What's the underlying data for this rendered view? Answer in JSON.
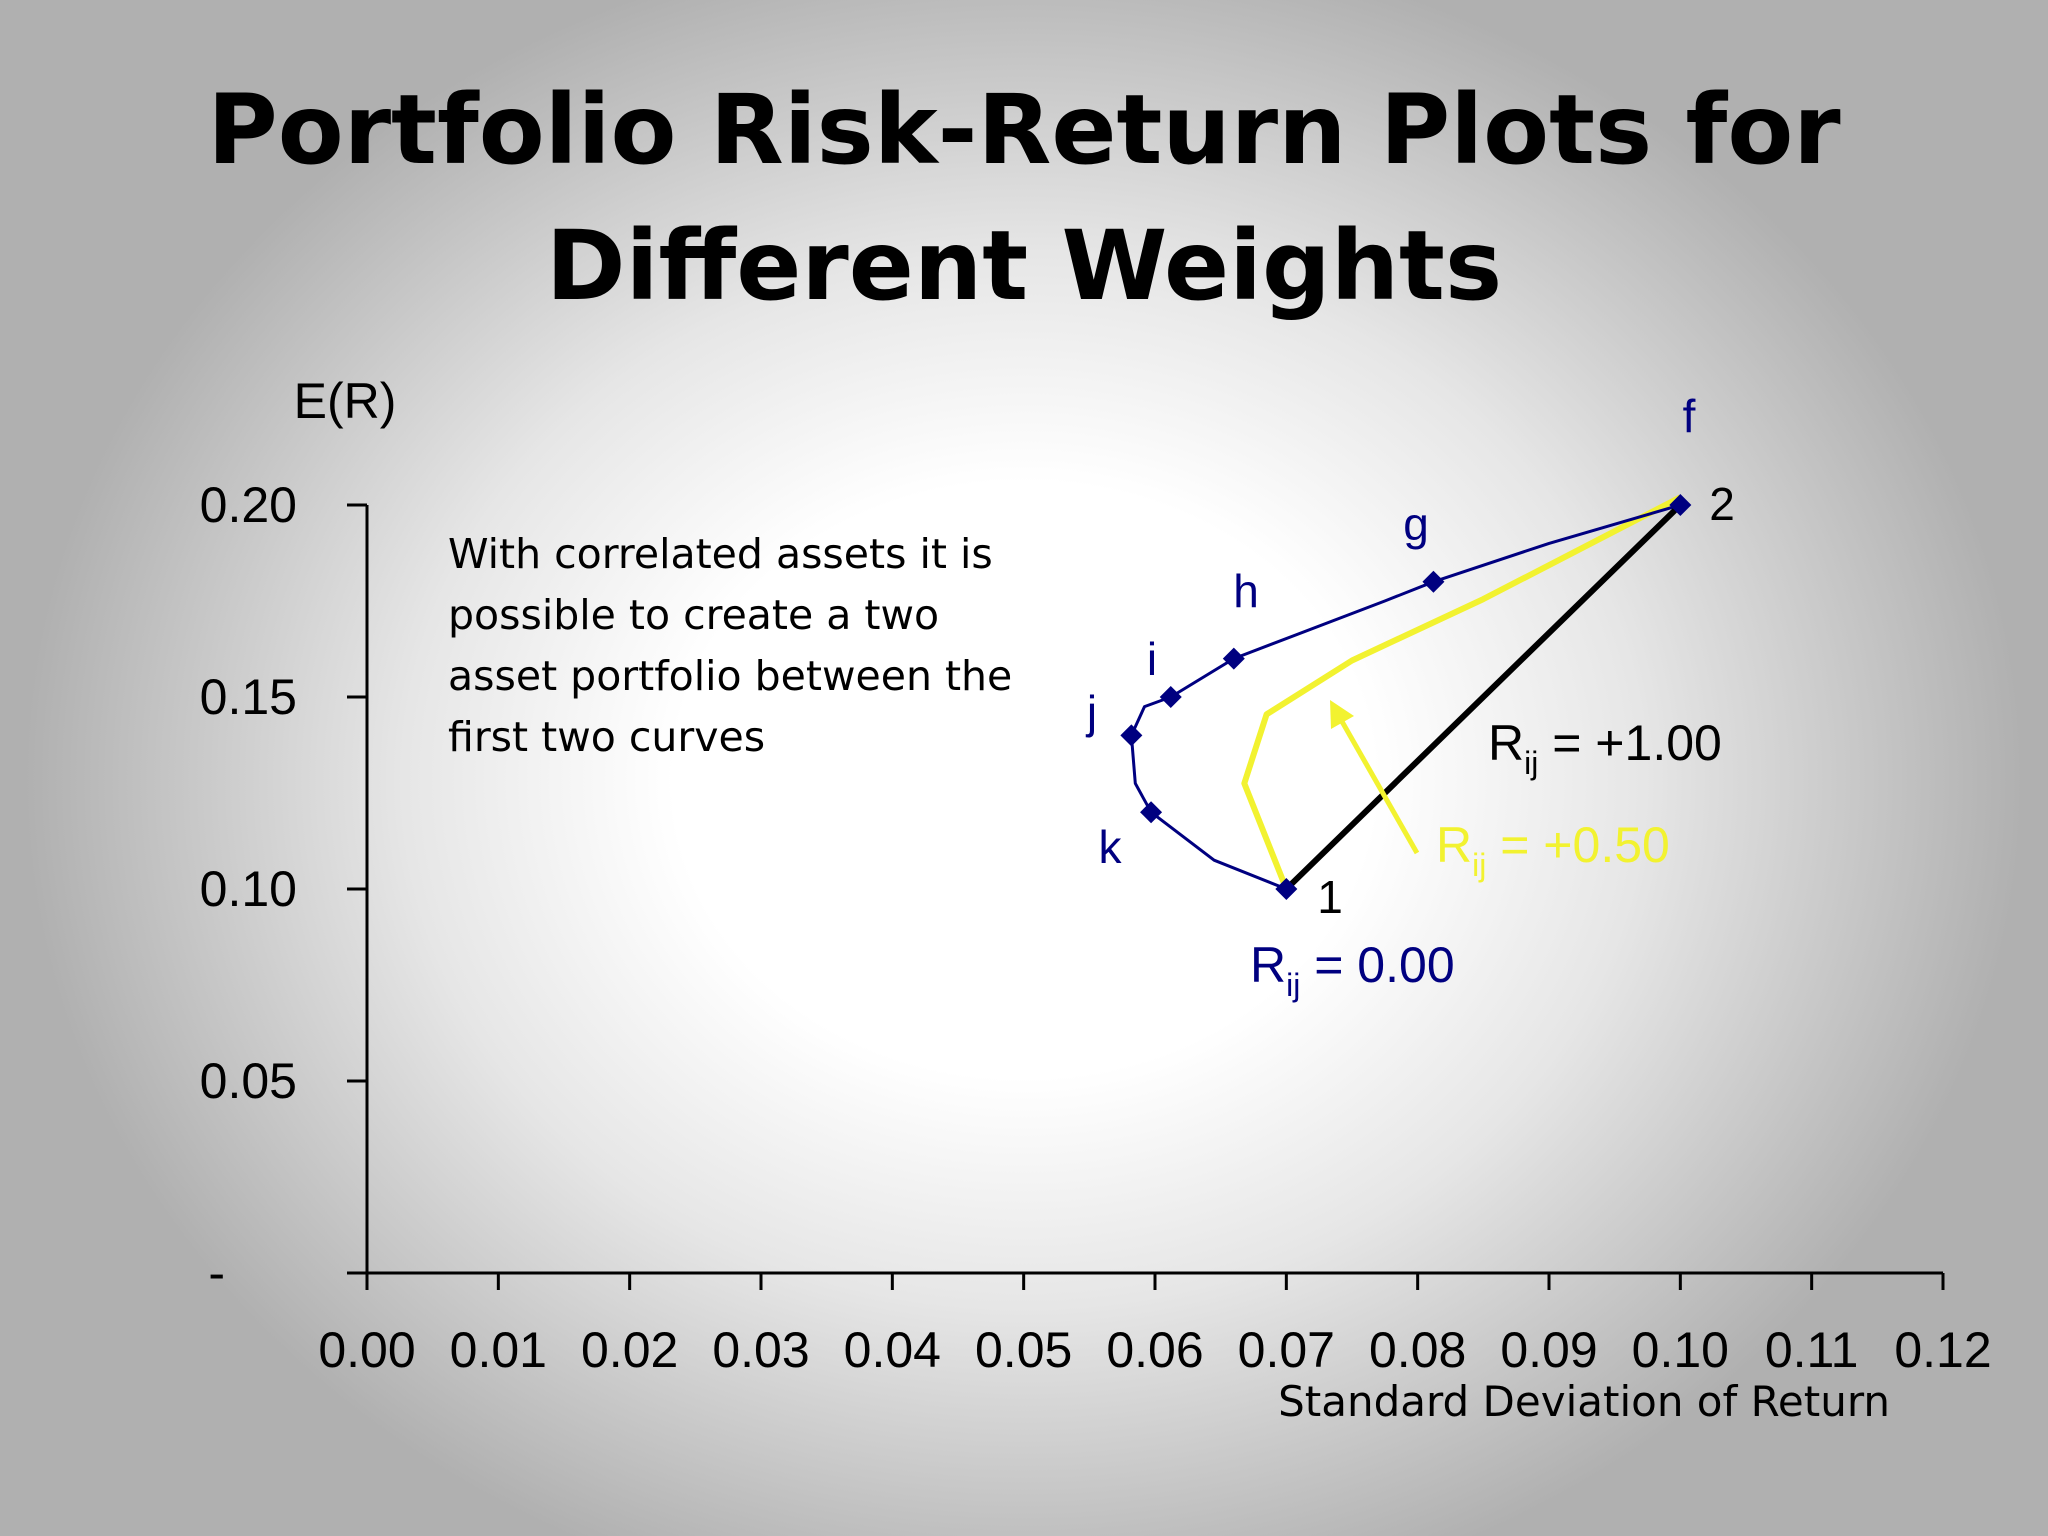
{
  "slide": {
    "title_line1": "Portfolio Risk-Return Plots for",
    "title_line2": "Different Weights",
    "note": "With correlated assets it is possible to create a two asset portfolio between the first two curves"
  },
  "chart_data": {
    "type": "line",
    "ylabel": "E(R)",
    "xlabel": "Standard Deviation of Return",
    "xlim": [
      0,
      0.12
    ],
    "ylim": [
      0,
      0.2
    ],
    "x_ticks": [
      "0.00",
      "0.01",
      "0.02",
      "0.03",
      "0.04",
      "0.05",
      "0.06",
      "0.07",
      "0.08",
      "0.09",
      "0.10",
      "0.11",
      "0.12"
    ],
    "y_ticks": [
      {
        "value": 0,
        "label": "-"
      },
      {
        "value": 0.05,
        "label": "0.05"
      },
      {
        "value": 0.1,
        "label": "0.10"
      },
      {
        "value": 0.15,
        "label": "0.15"
      },
      {
        "value": 0.2,
        "label": "0.20"
      }
    ],
    "series": [
      {
        "key": "r000",
        "label_main": "R",
        "label_sub": "ij",
        "label_rest": " = 0.00",
        "color": "#000080",
        "curve": [
          [
            0.07,
            0.1
          ],
          [
            0.0645,
            0.1075
          ],
          [
            0.0597,
            0.12
          ],
          [
            0.0585,
            0.1275
          ],
          [
            0.0582,
            0.14
          ],
          [
            0.0592,
            0.1475
          ],
          [
            0.0612,
            0.15
          ],
          [
            0.066,
            0.16
          ],
          [
            0.0775,
            0.175
          ],
          [
            0.0812,
            0.18
          ],
          [
            0.09,
            0.19
          ],
          [
            0.1,
            0.2
          ]
        ],
        "points": [
          {
            "name": "1",
            "x": 0.07,
            "y": 0.1
          },
          {
            "name": "k",
            "x": 0.0597,
            "y": 0.12
          },
          {
            "name": "j",
            "x": 0.0582,
            "y": 0.14
          },
          {
            "name": "i",
            "x": 0.0612,
            "y": 0.15
          },
          {
            "name": "h",
            "x": 0.066,
            "y": 0.16
          },
          {
            "name": "g",
            "x": 0.0812,
            "y": 0.18
          },
          {
            "name": "2",
            "x": 0.1,
            "y": 0.2
          }
        ]
      },
      {
        "key": "r050",
        "label_main": "R",
        "label_sub": "ij",
        "label_rest": " = +0.50",
        "color": "#f2f230",
        "curve": [
          [
            0.07,
            0.1
          ],
          [
            0.0668,
            0.1275
          ],
          [
            0.0685,
            0.1455
          ],
          [
            0.075,
            0.1595
          ],
          [
            0.085,
            0.1755
          ],
          [
            0.1,
            0.202
          ]
        ]
      },
      {
        "key": "r100",
        "label_main": "R",
        "label_sub": "ij",
        "label_rest": " = +1.00",
        "color": "#000000",
        "curve": [
          [
            0.07,
            0.1
          ],
          [
            0.1,
            0.2
          ]
        ]
      }
    ],
    "point_labels": [
      "f",
      "g",
      "h",
      "i",
      "j",
      "k",
      "1",
      "2"
    ]
  }
}
